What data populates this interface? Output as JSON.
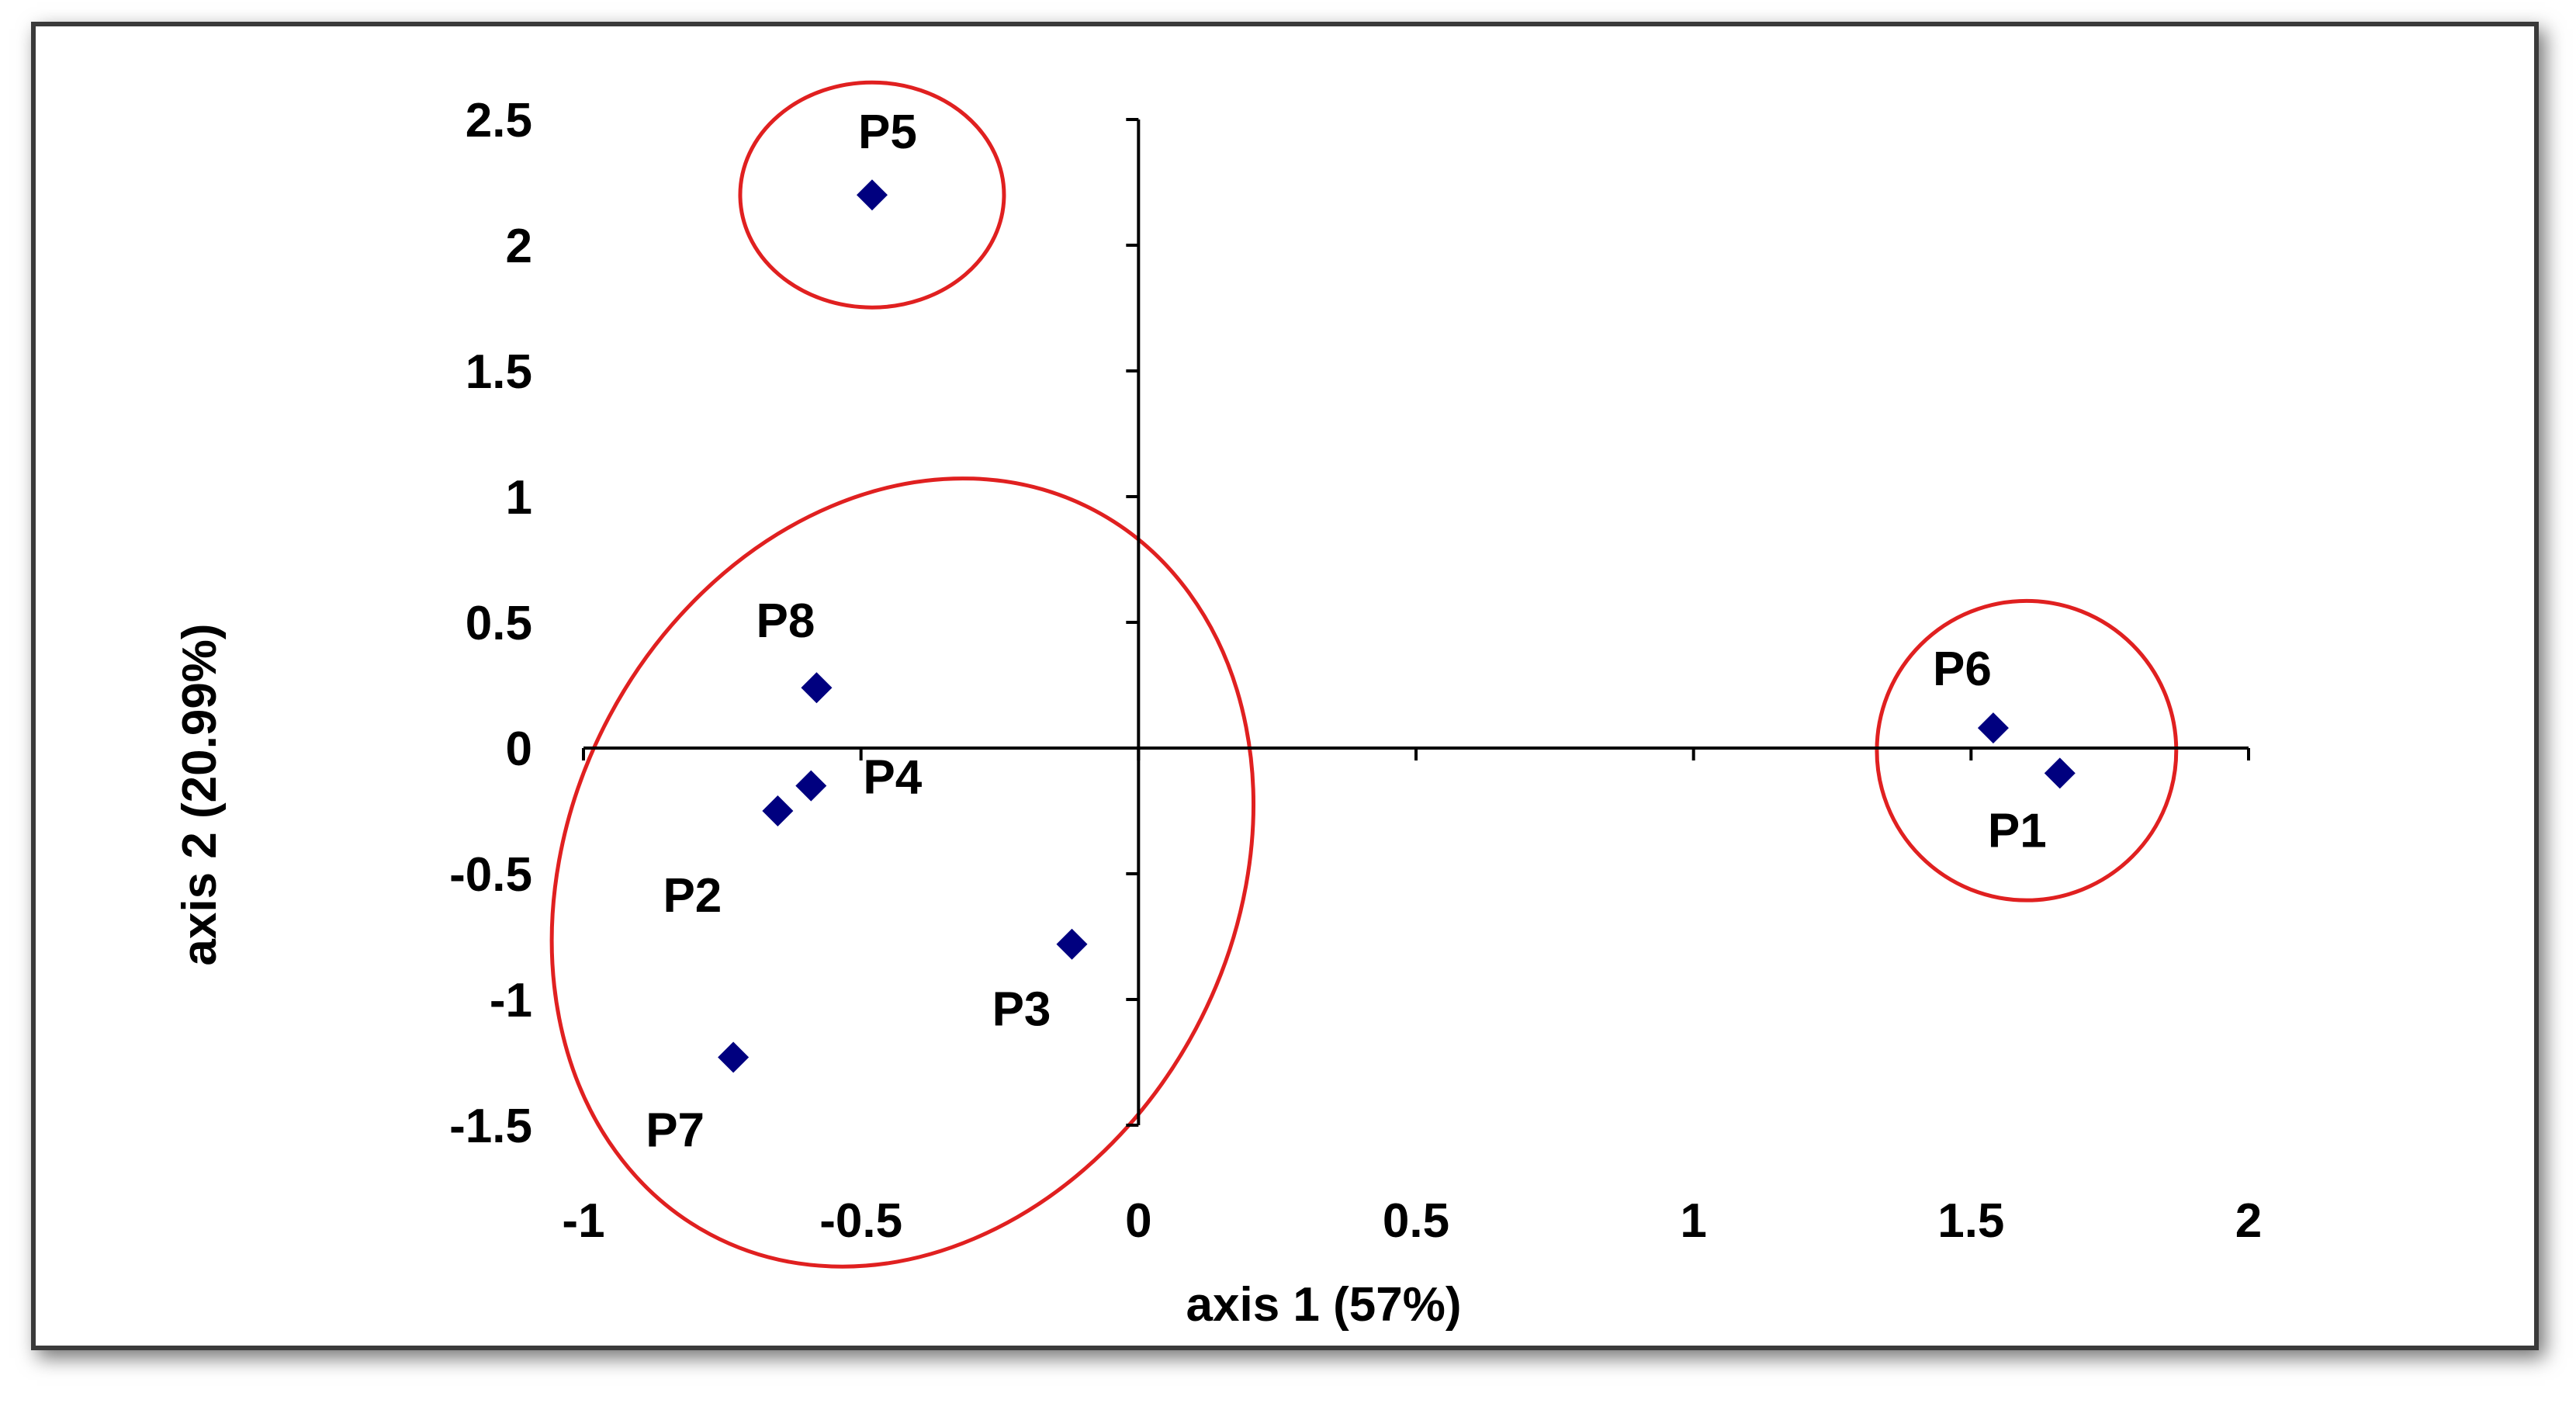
{
  "chart_data": {
    "type": "scatter",
    "xlabel": "axis 1 (57%)",
    "ylabel": "axis 2 (20.99%)",
    "xlim": [
      -1,
      2
    ],
    "ylim": [
      -1.5,
      2.5
    ],
    "x_ticks": [
      -1,
      -0.5,
      0,
      0.5,
      1,
      1.5,
      2
    ],
    "x_tick_labels": [
      "-1",
      "-0.5",
      "0",
      "0.5",
      "1",
      "1.5",
      "2"
    ],
    "y_ticks": [
      -1.5,
      -1,
      -0.5,
      0,
      0.5,
      1,
      1.5,
      2,
      2.5
    ],
    "y_tick_labels": [
      "-1.5",
      "-1",
      "-0.5",
      "0",
      "0.5",
      "1",
      "1.5",
      "2",
      "2.5"
    ],
    "grid": false,
    "marker_color": "#00007f",
    "group_outline_color": "#e02020",
    "points": [
      {
        "label": "P1",
        "x": 1.66,
        "y": -0.1
      },
      {
        "label": "P2",
        "x": -0.65,
        "y": -0.25
      },
      {
        "label": "P3",
        "x": -0.12,
        "y": -0.78
      },
      {
        "label": "P4",
        "x": -0.59,
        "y": -0.15
      },
      {
        "label": "P5",
        "x": -0.48,
        "y": 2.2
      },
      {
        "label": "P6",
        "x": 1.54,
        "y": 0.08
      },
      {
        "label": "P7",
        "x": -0.73,
        "y": -1.23
      },
      {
        "label": "P8",
        "x": -0.58,
        "y": 0.24
      }
    ],
    "groups": [
      [
        "P5"
      ],
      [
        "P2",
        "P3",
        "P4",
        "P7",
        "P8"
      ],
      [
        "P1",
        "P6"
      ]
    ]
  }
}
